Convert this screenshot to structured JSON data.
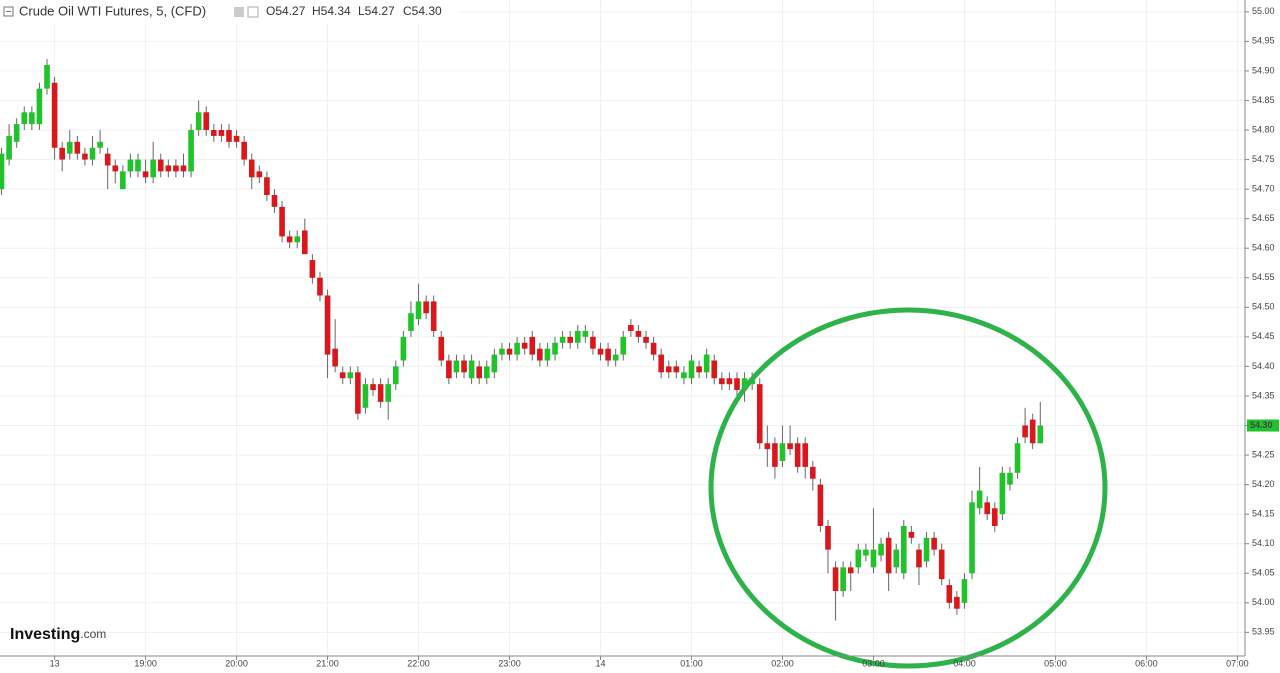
{
  "chart_data": {
    "type": "candlestick",
    "title": "Crude Oil WTI Futures, 5, (CFD)",
    "ohlc_header": [
      "O54.27",
      "H54.34",
      "L54.27",
      "C54.30"
    ],
    "watermark": [
      "Investing",
      ".com"
    ],
    "up_color": "#21c32a",
    "down_color": "#d9181e",
    "wick_color": "#666666",
    "grid": true,
    "xlim": [
      1044,
      1865
    ],
    "ylim": [
      53.91,
      55.02
    ],
    "xticks": [
      {
        "value": 1080,
        "label": "13"
      },
      {
        "value": 1140,
        "label": "19:00"
      },
      {
        "value": 1200,
        "label": "20:00"
      },
      {
        "value": 1260,
        "label": "21:00"
      },
      {
        "value": 1320,
        "label": "22:00"
      },
      {
        "value": 1380,
        "label": "23:00"
      },
      {
        "value": 1440,
        "label": "14"
      },
      {
        "value": 1500,
        "label": "01:00"
      },
      {
        "value": 1560,
        "label": "02:00"
      },
      {
        "value": 1620,
        "label": "03:00"
      },
      {
        "value": 1680,
        "label": "04:00"
      },
      {
        "value": 1740,
        "label": "05:00"
      },
      {
        "value": 1800,
        "label": "06:00"
      },
      {
        "value": 1860,
        "label": "07:00"
      }
    ],
    "yticks": [
      {
        "value": 53.95,
        "label": "53.95"
      },
      {
        "value": 54,
        "label": "54.00"
      },
      {
        "value": 54.05,
        "label": "54.05"
      },
      {
        "value": 54.1,
        "label": "54.10"
      },
      {
        "value": 54.15,
        "label": "54.15"
      },
      {
        "value": 54.2,
        "label": "54.20"
      },
      {
        "value": 54.25,
        "label": "54.25"
      },
      {
        "value": 54.3,
        "label": "54.30"
      },
      {
        "value": 54.35,
        "label": "54.35"
      },
      {
        "value": 54.4,
        "label": "54.40"
      },
      {
        "value": 54.45,
        "label": "54.45"
      },
      {
        "value": 54.5,
        "label": "54.50"
      },
      {
        "value": 54.55,
        "label": "54.55"
      },
      {
        "value": 54.6,
        "label": "54.60"
      },
      {
        "value": 54.65,
        "label": "54.65"
      },
      {
        "value": 54.7,
        "label": "54.70"
      },
      {
        "value": 54.75,
        "label": "54.75"
      },
      {
        "value": 54.8,
        "label": "54.80"
      },
      {
        "value": 54.85,
        "label": "54.85"
      },
      {
        "value": 54.9,
        "label": "54.90"
      },
      {
        "value": 54.95,
        "label": "54.95"
      },
      {
        "value": 55,
        "label": "55.00"
      }
    ],
    "last_price": {
      "value": 54.3,
      "label": "54.30"
    },
    "x": [
      1045,
      1050,
      1055,
      1060,
      1065,
      1070,
      1075,
      1080,
      1085,
      1090,
      1095,
      1100,
      1105,
      1110,
      1115,
      1120,
      1125,
      1130,
      1135,
      1140,
      1145,
      1150,
      1155,
      1160,
      1165,
      1170,
      1175,
      1180,
      1185,
      1190,
      1195,
      1200,
      1205,
      1210,
      1215,
      1220,
      1225,
      1230,
      1235,
      1240,
      1245,
      1250,
      1255,
      1260,
      1265,
      1270,
      1275,
      1280,
      1285,
      1290,
      1295,
      1300,
      1305,
      1310,
      1315,
      1320,
      1325,
      1330,
      1335,
      1340,
      1345,
      1350,
      1355,
      1360,
      1365,
      1370,
      1375,
      1380,
      1385,
      1390,
      1395,
      1400,
      1405,
      1410,
      1415,
      1420,
      1425,
      1430,
      1435,
      1440,
      1445,
      1450,
      1455,
      1460,
      1465,
      1470,
      1475,
      1480,
      1485,
      1490,
      1495,
      1500,
      1505,
      1510,
      1515,
      1520,
      1525,
      1530,
      1535,
      1540,
      1545,
      1550,
      1555,
      1560,
      1565,
      1570,
      1575,
      1580,
      1585,
      1590,
      1595,
      1600,
      1605,
      1610,
      1615,
      1620,
      1625,
      1630,
      1635,
      1640,
      1645,
      1650,
      1655,
      1660,
      1665,
      1670,
      1675,
      1680,
      1685,
      1690,
      1695,
      1700,
      1705,
      1710,
      1715,
      1720,
      1725,
      1730
    ],
    "open": [
      54.7,
      54.75,
      54.78,
      54.81,
      54.81,
      54.81,
      54.87,
      54.88,
      54.77,
      54.76,
      54.78,
      54.76,
      54.75,
      54.77,
      54.76,
      54.74,
      54.7,
      54.73,
      54.73,
      54.73,
      54.72,
      54.75,
      54.74,
      54.74,
      54.74,
      54.73,
      54.8,
      54.83,
      54.8,
      54.8,
      54.8,
      54.79,
      54.78,
      54.75,
      54.73,
      54.72,
      54.69,
      54.67,
      54.62,
      54.61,
      54.63,
      54.58,
      54.55,
      54.52,
      54.43,
      54.39,
      54.38,
      54.39,
      54.33,
      54.37,
      54.37,
      54.34,
      54.37,
      54.41,
      54.46,
      54.48,
      54.51,
      54.51,
      54.45,
      54.41,
      54.39,
      54.41,
      54.38,
      54.4,
      54.38,
      54.39,
      54.42,
      54.43,
      54.42,
      54.44,
      54.45,
      54.43,
      54.41,
      54.42,
      54.44,
      54.45,
      54.44,
      54.45,
      54.45,
      54.43,
      54.43,
      54.41,
      54.42,
      54.47,
      54.46,
      54.45,
      54.44,
      54.42,
      54.4,
      54.4,
      54.38,
      54.38,
      54.4,
      54.39,
      54.41,
      54.38,
      54.38,
      54.38,
      54.36,
      54.37,
      54.37,
      54.27,
      54.27,
      54.24,
      54.27,
      54.27,
      54.27,
      54.23,
      54.2,
      54.13,
      54.06,
      54.02,
      54.06,
      54.06,
      54.08,
      54.06,
      54.08,
      54.11,
      54.06,
      54.05,
      54.12,
      54.09,
      54.07,
      54.11,
      54.09,
      54.03,
      54.01,
      54.0,
      54.05,
      54.16,
      54.17,
      54.16,
      54.15,
      54.2,
      54.22,
      54.3,
      54.31,
      54.27
    ],
    "high": [
      54.77,
      54.81,
      54.82,
      54.84,
      54.84,
      54.88,
      54.92,
      54.89,
      54.78,
      54.8,
      54.79,
      54.77,
      54.79,
      54.8,
      54.77,
      54.75,
      54.74,
      54.76,
      54.76,
      54.75,
      54.78,
      54.76,
      54.75,
      54.75,
      54.76,
      54.81,
      54.85,
      54.84,
      54.81,
      54.81,
      54.81,
      54.8,
      54.79,
      54.76,
      54.74,
      54.73,
      54.7,
      54.68,
      54.63,
      54.63,
      54.65,
      54.59,
      54.56,
      54.53,
      54.48,
      54.4,
      54.4,
      54.4,
      54.38,
      54.38,
      54.38,
      54.38,
      54.41,
      54.46,
      54.51,
      54.54,
      54.52,
      54.52,
      54.46,
      54.42,
      54.42,
      54.42,
      54.42,
      54.41,
      54.41,
      54.43,
      54.44,
      54.44,
      54.45,
      54.45,
      54.46,
      54.44,
      54.44,
      54.45,
      54.46,
      54.46,
      54.47,
      54.47,
      54.46,
      54.44,
      54.44,
      54.43,
      54.46,
      54.48,
      54.47,
      54.46,
      54.45,
      54.43,
      54.41,
      54.41,
      54.4,
      54.42,
      54.41,
      54.43,
      54.42,
      54.39,
      54.39,
      54.39,
      54.39,
      54.39,
      54.38,
      54.3,
      54.28,
      54.3,
      54.3,
      54.28,
      54.28,
      54.24,
      54.21,
      54.14,
      54.07,
      54.07,
      54.07,
      54.1,
      54.1,
      54.16,
      54.11,
      54.12,
      54.1,
      54.14,
      54.13,
      54.1,
      54.12,
      54.12,
      54.1,
      54.04,
      54.02,
      54.05,
      54.19,
      54.23,
      54.18,
      54.17,
      54.23,
      54.23,
      54.28,
      54.33,
      54.32,
      54.34
    ],
    "low": [
      54.69,
      54.74,
      54.77,
      54.8,
      54.8,
      54.8,
      54.86,
      54.75,
      54.73,
      54.75,
      54.75,
      54.74,
      54.74,
      54.76,
      54.7,
      54.71,
      54.7,
      54.72,
      54.72,
      54.71,
      54.71,
      54.72,
      54.72,
      54.72,
      54.72,
      54.72,
      54.79,
      54.79,
      54.78,
      54.78,
      54.77,
      54.77,
      54.74,
      54.7,
      54.71,
      54.68,
      54.66,
      54.61,
      54.6,
      54.6,
      54.59,
      54.54,
      54.51,
      54.38,
      54.39,
      54.37,
      54.37,
      54.31,
      54.32,
      54.35,
      54.33,
      54.31,
      54.36,
      54.4,
      54.45,
      54.47,
      54.48,
      54.45,
      54.4,
      54.37,
      54.38,
      54.38,
      54.37,
      54.37,
      54.37,
      54.38,
      54.41,
      54.41,
      54.41,
      54.42,
      54.41,
      54.4,
      54.4,
      54.41,
      54.43,
      54.43,
      54.43,
      54.44,
      54.42,
      54.41,
      54.4,
      54.4,
      54.41,
      54.45,
      54.44,
      54.43,
      54.41,
      54.38,
      54.38,
      54.38,
      54.37,
      54.37,
      54.38,
      54.38,
      54.37,
      54.36,
      54.36,
      54.35,
      54.34,
      54.36,
      54.26,
      54.23,
      54.21,
      54.23,
      54.25,
      54.22,
      54.21,
      54.19,
      54.12,
      54.05,
      53.97,
      54.01,
      54.02,
      54.05,
      54.07,
      54.05,
      54.07,
      54.02,
      54.05,
      54.04,
      54.1,
      54.03,
      54.06,
      54.08,
      54.03,
      53.99,
      53.98,
      53.99,
      54.04,
      54.15,
      54.14,
      54.12,
      54.14,
      54.19,
      54.21,
      54.27,
      54.26,
      54.27
    ],
    "close": [
      54.76,
      54.79,
      54.81,
      54.83,
      54.83,
      54.87,
      54.91,
      54.77,
      54.75,
      54.78,
      54.76,
      54.75,
      54.77,
      54.78,
      54.74,
      54.73,
      54.73,
      54.75,
      54.75,
      54.72,
      54.75,
      54.73,
      54.73,
      54.73,
      54.73,
      54.8,
      54.83,
      54.8,
      54.79,
      54.79,
      54.78,
      54.78,
      54.75,
      54.72,
      54.72,
      54.69,
      54.67,
      54.62,
      54.61,
      54.62,
      54.59,
      54.55,
      54.52,
      54.42,
      54.4,
      54.38,
      54.39,
      54.32,
      54.37,
      54.36,
      54.34,
      54.37,
      54.4,
      54.45,
      54.49,
      54.51,
      54.49,
      54.46,
      54.41,
      54.38,
      54.41,
      54.39,
      54.41,
      54.38,
      54.4,
      54.42,
      54.43,
      54.42,
      54.44,
      54.43,
      54.42,
      54.41,
      54.43,
      54.44,
      54.45,
      54.44,
      54.46,
      54.46,
      54.43,
      54.42,
      54.41,
      54.42,
      54.45,
      54.46,
      54.45,
      54.44,
      54.42,
      54.39,
      54.39,
      54.39,
      54.39,
      54.41,
      54.39,
      54.42,
      54.38,
      54.37,
      54.37,
      54.36,
      54.38,
      54.38,
      54.27,
      54.26,
      54.23,
      54.27,
      54.26,
      54.23,
      54.23,
      54.21,
      54.13,
      54.09,
      54.02,
      54.06,
      54.05,
      54.09,
      54.09,
      54.09,
      54.1,
      54.05,
      54.09,
      54.13,
      54.11,
      54.06,
      54.11,
      54.09,
      54.04,
      54.0,
      53.99,
      54.04,
      54.17,
      54.19,
      54.15,
      54.13,
      54.22,
      54.22,
      54.27,
      54.28,
      54.27,
      54.3
    ]
  }
}
